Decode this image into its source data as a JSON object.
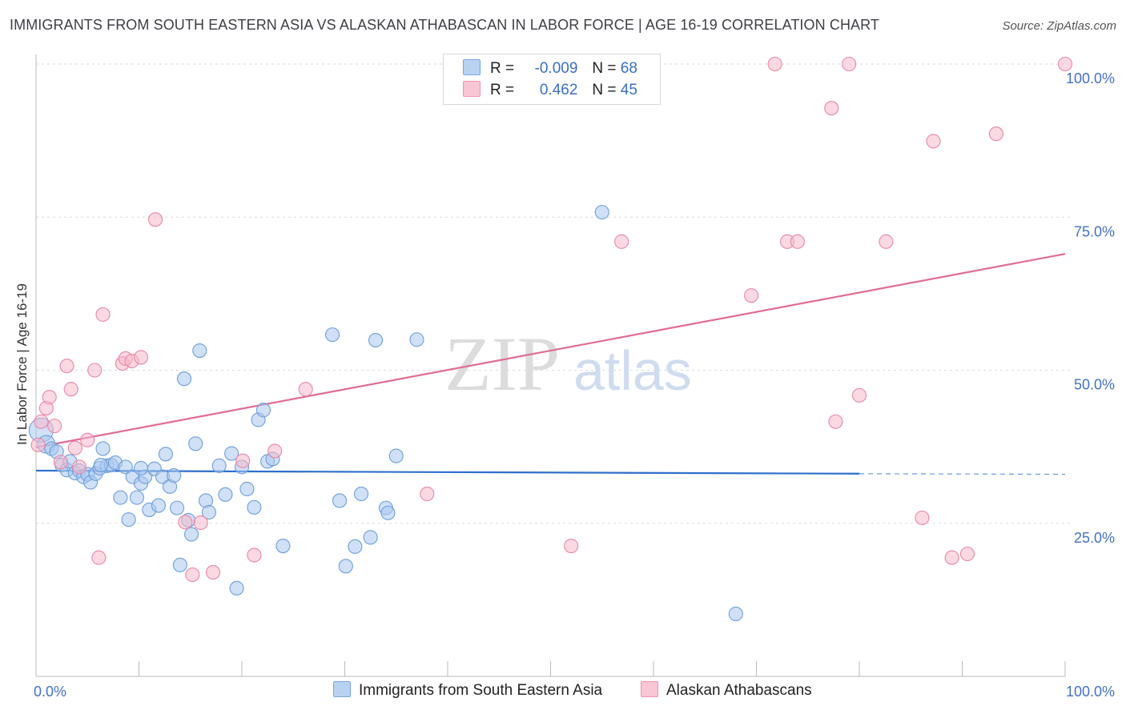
{
  "title": "IMMIGRANTS FROM SOUTH EASTERN ASIA VS ALASKAN ATHABASCAN IN LABOR FORCE | AGE 16-19 CORRELATION CHART",
  "source": "Source: ZipAtlas.com",
  "watermark": {
    "zip": "ZIP",
    "atlas": "atlas"
  },
  "legend": {
    "r_label": "R =",
    "n_label": "N =",
    "series1": {
      "r": "-0.009",
      "n": "68"
    },
    "series2": {
      "r": "0.462",
      "n": "45"
    }
  },
  "chart_data": {
    "type": "scatter",
    "title": "IMMIGRANTS FROM SOUTH EASTERN ASIA VS ALASKAN ATHABASCAN IN LABOR FORCE | AGE 16-19 CORRELATION CHART",
    "xlabel": "",
    "ylabel": "In Labor Force | Age 16-19",
    "xlim": [
      0,
      100
    ],
    "ylim": [
      0,
      100
    ],
    "x_tick_labels": [
      "0.0%",
      "100.0%"
    ],
    "y_tick_labels": [
      "25.0%",
      "50.0%",
      "75.0%",
      "100.0%"
    ],
    "y_ticks": [
      25,
      50,
      75,
      100
    ],
    "grid": true,
    "legend_position": "top-center",
    "series": [
      {
        "name": "Immigrants from South Eastern Asia",
        "color": "#a9c8f0",
        "edge": "#6d9ed8",
        "line_color": "#2f6fcc",
        "trend": {
          "x0": 0,
          "y0": 33.6,
          "x1": 80,
          "y1": 33.1,
          "dash_to": 100,
          "dash_y": 33.0
        },
        "points": [
          [
            0.5,
            40.2
          ],
          [
            1.0,
            37.9
          ],
          [
            1.5,
            37.2
          ],
          [
            2.0,
            36.7
          ],
          [
            2.5,
            34.5
          ],
          [
            3.0,
            33.7
          ],
          [
            3.3,
            35.1
          ],
          [
            3.8,
            33.2
          ],
          [
            4.2,
            33.6
          ],
          [
            4.6,
            32.6
          ],
          [
            5.0,
            33.0
          ],
          [
            5.3,
            31.7
          ],
          [
            5.8,
            33.1
          ],
          [
            6.2,
            34.0
          ],
          [
            6.5,
            37.2
          ],
          [
            6.9,
            34.4
          ],
          [
            7.3,
            34.5
          ],
          [
            7.7,
            34.9
          ],
          [
            8.2,
            29.2
          ],
          [
            8.7,
            34.2
          ],
          [
            9.0,
            25.6
          ],
          [
            9.4,
            32.6
          ],
          [
            9.8,
            29.2
          ],
          [
            10.2,
            31.5
          ],
          [
            10.6,
            32.6
          ],
          [
            11.0,
            27.2
          ],
          [
            11.5,
            33.9
          ],
          [
            11.9,
            27.9
          ],
          [
            12.3,
            32.6
          ],
          [
            12.6,
            36.3
          ],
          [
            13.0,
            31.0
          ],
          [
            13.4,
            32.8
          ],
          [
            13.7,
            27.5
          ],
          [
            14.0,
            18.2
          ],
          [
            14.4,
            48.6
          ],
          [
            14.8,
            25.5
          ],
          [
            15.1,
            23.2
          ],
          [
            15.5,
            38.0
          ],
          [
            15.9,
            53.2
          ],
          [
            16.5,
            28.7
          ],
          [
            16.8,
            26.8
          ],
          [
            17.8,
            34.4
          ],
          [
            18.4,
            29.7
          ],
          [
            19.0,
            36.4
          ],
          [
            19.5,
            14.4
          ],
          [
            20.0,
            34.2
          ],
          [
            20.5,
            30.6
          ],
          [
            21.2,
            27.6
          ],
          [
            21.6,
            41.9
          ],
          [
            22.1,
            43.5
          ],
          [
            22.5,
            35.1
          ],
          [
            23.0,
            35.5
          ],
          [
            24.0,
            21.3
          ],
          [
            28.8,
            55.8
          ],
          [
            29.5,
            28.7
          ],
          [
            30.1,
            18.0
          ],
          [
            31.0,
            21.2
          ],
          [
            31.6,
            29.8
          ],
          [
            32.5,
            22.7
          ],
          [
            33.0,
            54.9
          ],
          [
            34.0,
            27.5
          ],
          [
            34.2,
            26.7
          ],
          [
            35.0,
            36.0
          ],
          [
            37.0,
            55.0
          ],
          [
            55.0,
            75.8
          ],
          [
            68.0,
            10.2
          ],
          [
            6.3,
            34.5
          ],
          [
            10.2,
            34.0
          ]
        ]
      },
      {
        "name": "Alaskan Athabascans",
        "color": "#f7b9cc",
        "edge": "#e886a6",
        "line_color": "#e06c97",
        "trend": {
          "x0": 0,
          "y0": 37.4,
          "x1": 100,
          "y1": 69.0
        },
        "points": [
          [
            0.2,
            37.8
          ],
          [
            0.5,
            41.6
          ],
          [
            1.0,
            43.8
          ],
          [
            1.3,
            45.6
          ],
          [
            1.8,
            40.9
          ],
          [
            2.4,
            35.0
          ],
          [
            3.0,
            50.7
          ],
          [
            3.4,
            46.9
          ],
          [
            3.8,
            37.3
          ],
          [
            4.2,
            34.2
          ],
          [
            5.0,
            38.6
          ],
          [
            5.7,
            50.0
          ],
          [
            6.1,
            19.4
          ],
          [
            6.5,
            59.1
          ],
          [
            8.4,
            51.1
          ],
          [
            8.7,
            51.9
          ],
          [
            9.3,
            51.5
          ],
          [
            10.2,
            52.1
          ],
          [
            11.6,
            74.6
          ],
          [
            14.5,
            25.2
          ],
          [
            15.2,
            16.6
          ],
          [
            16.0,
            25.1
          ],
          [
            17.2,
            17.0
          ],
          [
            20.1,
            35.2
          ],
          [
            21.2,
            19.8
          ],
          [
            23.2,
            36.8
          ],
          [
            26.2,
            46.9
          ],
          [
            38.0,
            29.8
          ],
          [
            52.0,
            21.3
          ],
          [
            56.9,
            71.0
          ],
          [
            69.5,
            62.2
          ],
          [
            71.8,
            100.0
          ],
          [
            73.0,
            71.0
          ],
          [
            74.0,
            71.0
          ],
          [
            77.3,
            92.8
          ],
          [
            77.7,
            41.6
          ],
          [
            79.0,
            100.0
          ],
          [
            80.0,
            45.9
          ],
          [
            82.6,
            71.0
          ],
          [
            86.1,
            25.9
          ],
          [
            87.2,
            87.4
          ],
          [
            89.0,
            19.4
          ],
          [
            90.5,
            20.0
          ],
          [
            93.3,
            88.6
          ],
          [
            100.0,
            100.0
          ]
        ]
      }
    ]
  }
}
